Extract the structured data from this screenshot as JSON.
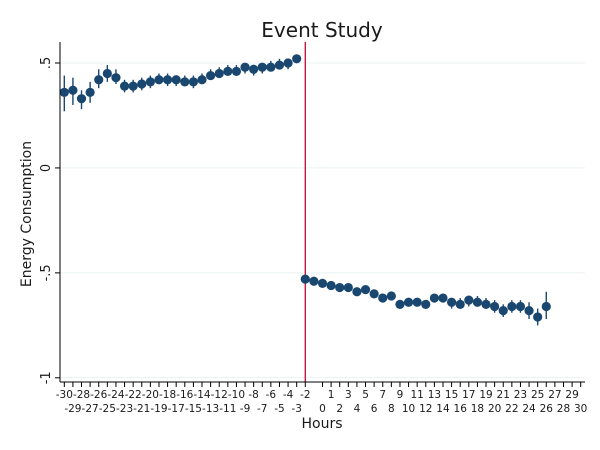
{
  "chart_data": {
    "type": "scatter",
    "title": "Event Study",
    "xlabel": "Hours",
    "ylabel": "Energy Consumption",
    "xlim": [
      -30,
      30
    ],
    "ylim": [
      -1,
      0.6
    ],
    "yticks": [
      {
        "value": 0.5,
        "label": ".5"
      },
      {
        "value": 0,
        "label": "0"
      },
      {
        "value": -0.5,
        "label": "-.5"
      },
      {
        "value": -1,
        "label": "-1"
      }
    ],
    "xticks_top": [
      "-30",
      "-28",
      "-26",
      "-24",
      "-22",
      "-20",
      "-18",
      "-16",
      "-14",
      "-12",
      "-10",
      "-8",
      "-6",
      "-4",
      "-2",
      "1",
      "3",
      "5",
      "7",
      "9",
      "11",
      "13",
      "15",
      "17",
      "19",
      "21",
      "23",
      "25",
      "27",
      "29"
    ],
    "xticks_top_values": [
      -30,
      -28,
      -26,
      -24,
      -22,
      -20,
      -18,
      -16,
      -14,
      -12,
      -10,
      -8,
      -6,
      -4,
      -2,
      1,
      3,
      5,
      7,
      9,
      11,
      13,
      15,
      17,
      19,
      21,
      23,
      25,
      27,
      29
    ],
    "xticks_bottom": [
      "-29",
      "-27",
      "-25",
      "-23",
      "-21",
      "-19",
      "-17",
      "-15",
      "-13",
      "-11",
      "-9",
      "-7",
      "-5",
      "-3",
      "0",
      "2",
      "4",
      "6",
      "8",
      "10",
      "12",
      "14",
      "16",
      "18",
      "20",
      "22",
      "24",
      "26",
      "28",
      "30"
    ],
    "xticks_bottom_values": [
      -29,
      -27,
      -25,
      -23,
      -21,
      -19,
      -17,
      -15,
      -13,
      -11,
      -9,
      -7,
      -5,
      -3,
      0,
      2,
      4,
      6,
      8,
      10,
      12,
      14,
      16,
      18,
      20,
      22,
      24,
      26,
      28,
      30
    ],
    "event_line_x": -2,
    "grid": true,
    "colors": {
      "marker": "#1a476f",
      "event_line": "#c10534",
      "grid": "#eaf2f3",
      "axis": "#000000"
    },
    "points": [
      {
        "x": -30,
        "y": 0.36,
        "lo": 0.27,
        "hi": 0.44
      },
      {
        "x": -29,
        "y": 0.37,
        "lo": 0.3,
        "hi": 0.43
      },
      {
        "x": -28,
        "y": 0.33,
        "lo": 0.28,
        "hi": 0.37
      },
      {
        "x": -27,
        "y": 0.36,
        "lo": 0.31,
        "hi": 0.41
      },
      {
        "x": -26,
        "y": 0.42,
        "lo": 0.38,
        "hi": 0.47
      },
      {
        "x": -25,
        "y": 0.45,
        "lo": 0.41,
        "hi": 0.49
      },
      {
        "x": -24,
        "y": 0.43,
        "lo": 0.4,
        "hi": 0.47
      },
      {
        "x": -23,
        "y": 0.39,
        "lo": 0.36,
        "hi": 0.42
      },
      {
        "x": -22,
        "y": 0.39,
        "lo": 0.36,
        "hi": 0.42
      },
      {
        "x": -21,
        "y": 0.4,
        "lo": 0.37,
        "hi": 0.43
      },
      {
        "x": -20,
        "y": 0.41,
        "lo": 0.38,
        "hi": 0.44
      },
      {
        "x": -19,
        "y": 0.42,
        "lo": 0.4,
        "hi": 0.45
      },
      {
        "x": -18,
        "y": 0.42,
        "lo": 0.39,
        "hi": 0.45
      },
      {
        "x": -17,
        "y": 0.42,
        "lo": 0.39,
        "hi": 0.44
      },
      {
        "x": -16,
        "y": 0.41,
        "lo": 0.39,
        "hi": 0.44
      },
      {
        "x": -15,
        "y": 0.41,
        "lo": 0.38,
        "hi": 0.44
      },
      {
        "x": -14,
        "y": 0.42,
        "lo": 0.4,
        "hi": 0.45
      },
      {
        "x": -13,
        "y": 0.44,
        "lo": 0.42,
        "hi": 0.47
      },
      {
        "x": -12,
        "y": 0.45,
        "lo": 0.43,
        "hi": 0.48
      },
      {
        "x": -11,
        "y": 0.46,
        "lo": 0.44,
        "hi": 0.49
      },
      {
        "x": -10,
        "y": 0.46,
        "lo": 0.44,
        "hi": 0.49
      },
      {
        "x": -9,
        "y": 0.48,
        "lo": 0.45,
        "hi": 0.5
      },
      {
        "x": -8,
        "y": 0.47,
        "lo": 0.44,
        "hi": 0.49
      },
      {
        "x": -7,
        "y": 0.48,
        "lo": 0.45,
        "hi": 0.5
      },
      {
        "x": -6,
        "y": 0.48,
        "lo": 0.46,
        "hi": 0.51
      },
      {
        "x": -5,
        "y": 0.49,
        "lo": 0.47,
        "hi": 0.52
      },
      {
        "x": -4,
        "y": 0.5,
        "lo": 0.47,
        "hi": 0.52
      },
      {
        "x": -3,
        "y": 0.52,
        "lo": 0.5,
        "hi": 0.54
      },
      {
        "x": -2,
        "y": -0.53,
        "lo": -0.55,
        "hi": -0.51
      },
      {
        "x": -1,
        "y": -0.54,
        "lo": -0.56,
        "hi": -0.52
      },
      {
        "x": 0,
        "y": -0.55,
        "lo": -0.57,
        "hi": -0.53
      },
      {
        "x": 1,
        "y": -0.56,
        "lo": -0.58,
        "hi": -0.54
      },
      {
        "x": 2,
        "y": -0.57,
        "lo": -0.59,
        "hi": -0.55
      },
      {
        "x": 3,
        "y": -0.57,
        "lo": -0.59,
        "hi": -0.55
      },
      {
        "x": 4,
        "y": -0.59,
        "lo": -0.61,
        "hi": -0.57
      },
      {
        "x": 5,
        "y": -0.58,
        "lo": -0.6,
        "hi": -0.56
      },
      {
        "x": 6,
        "y": -0.6,
        "lo": -0.62,
        "hi": -0.58
      },
      {
        "x": 7,
        "y": -0.62,
        "lo": -0.64,
        "hi": -0.6
      },
      {
        "x": 8,
        "y": -0.61,
        "lo": -0.63,
        "hi": -0.59
      },
      {
        "x": 9,
        "y": -0.65,
        "lo": -0.67,
        "hi": -0.63
      },
      {
        "x": 10,
        "y": -0.64,
        "lo": -0.66,
        "hi": -0.62
      },
      {
        "x": 11,
        "y": -0.64,
        "lo": -0.66,
        "hi": -0.62
      },
      {
        "x": 12,
        "y": -0.65,
        "lo": -0.67,
        "hi": -0.63
      },
      {
        "x": 13,
        "y": -0.62,
        "lo": -0.64,
        "hi": -0.6
      },
      {
        "x": 14,
        "y": -0.62,
        "lo": -0.64,
        "hi": -0.6
      },
      {
        "x": 15,
        "y": -0.64,
        "lo": -0.67,
        "hi": -0.62
      },
      {
        "x": 16,
        "y": -0.65,
        "lo": -0.67,
        "hi": -0.62
      },
      {
        "x": 17,
        "y": -0.63,
        "lo": -0.66,
        "hi": -0.61
      },
      {
        "x": 18,
        "y": -0.64,
        "lo": -0.66,
        "hi": -0.61
      },
      {
        "x": 19,
        "y": -0.65,
        "lo": -0.67,
        "hi": -0.62
      },
      {
        "x": 20,
        "y": -0.66,
        "lo": -0.69,
        "hi": -0.63
      },
      {
        "x": 21,
        "y": -0.68,
        "lo": -0.71,
        "hi": -0.65
      },
      {
        "x": 22,
        "y": -0.66,
        "lo": -0.69,
        "hi": -0.63
      },
      {
        "x": 23,
        "y": -0.66,
        "lo": -0.69,
        "hi": -0.63
      },
      {
        "x": 24,
        "y": -0.68,
        "lo": -0.72,
        "hi": -0.64
      },
      {
        "x": 25,
        "y": -0.71,
        "lo": -0.75,
        "hi": -0.67
      },
      {
        "x": 26,
        "y": -0.66,
        "lo": -0.72,
        "hi": -0.59
      }
    ]
  }
}
